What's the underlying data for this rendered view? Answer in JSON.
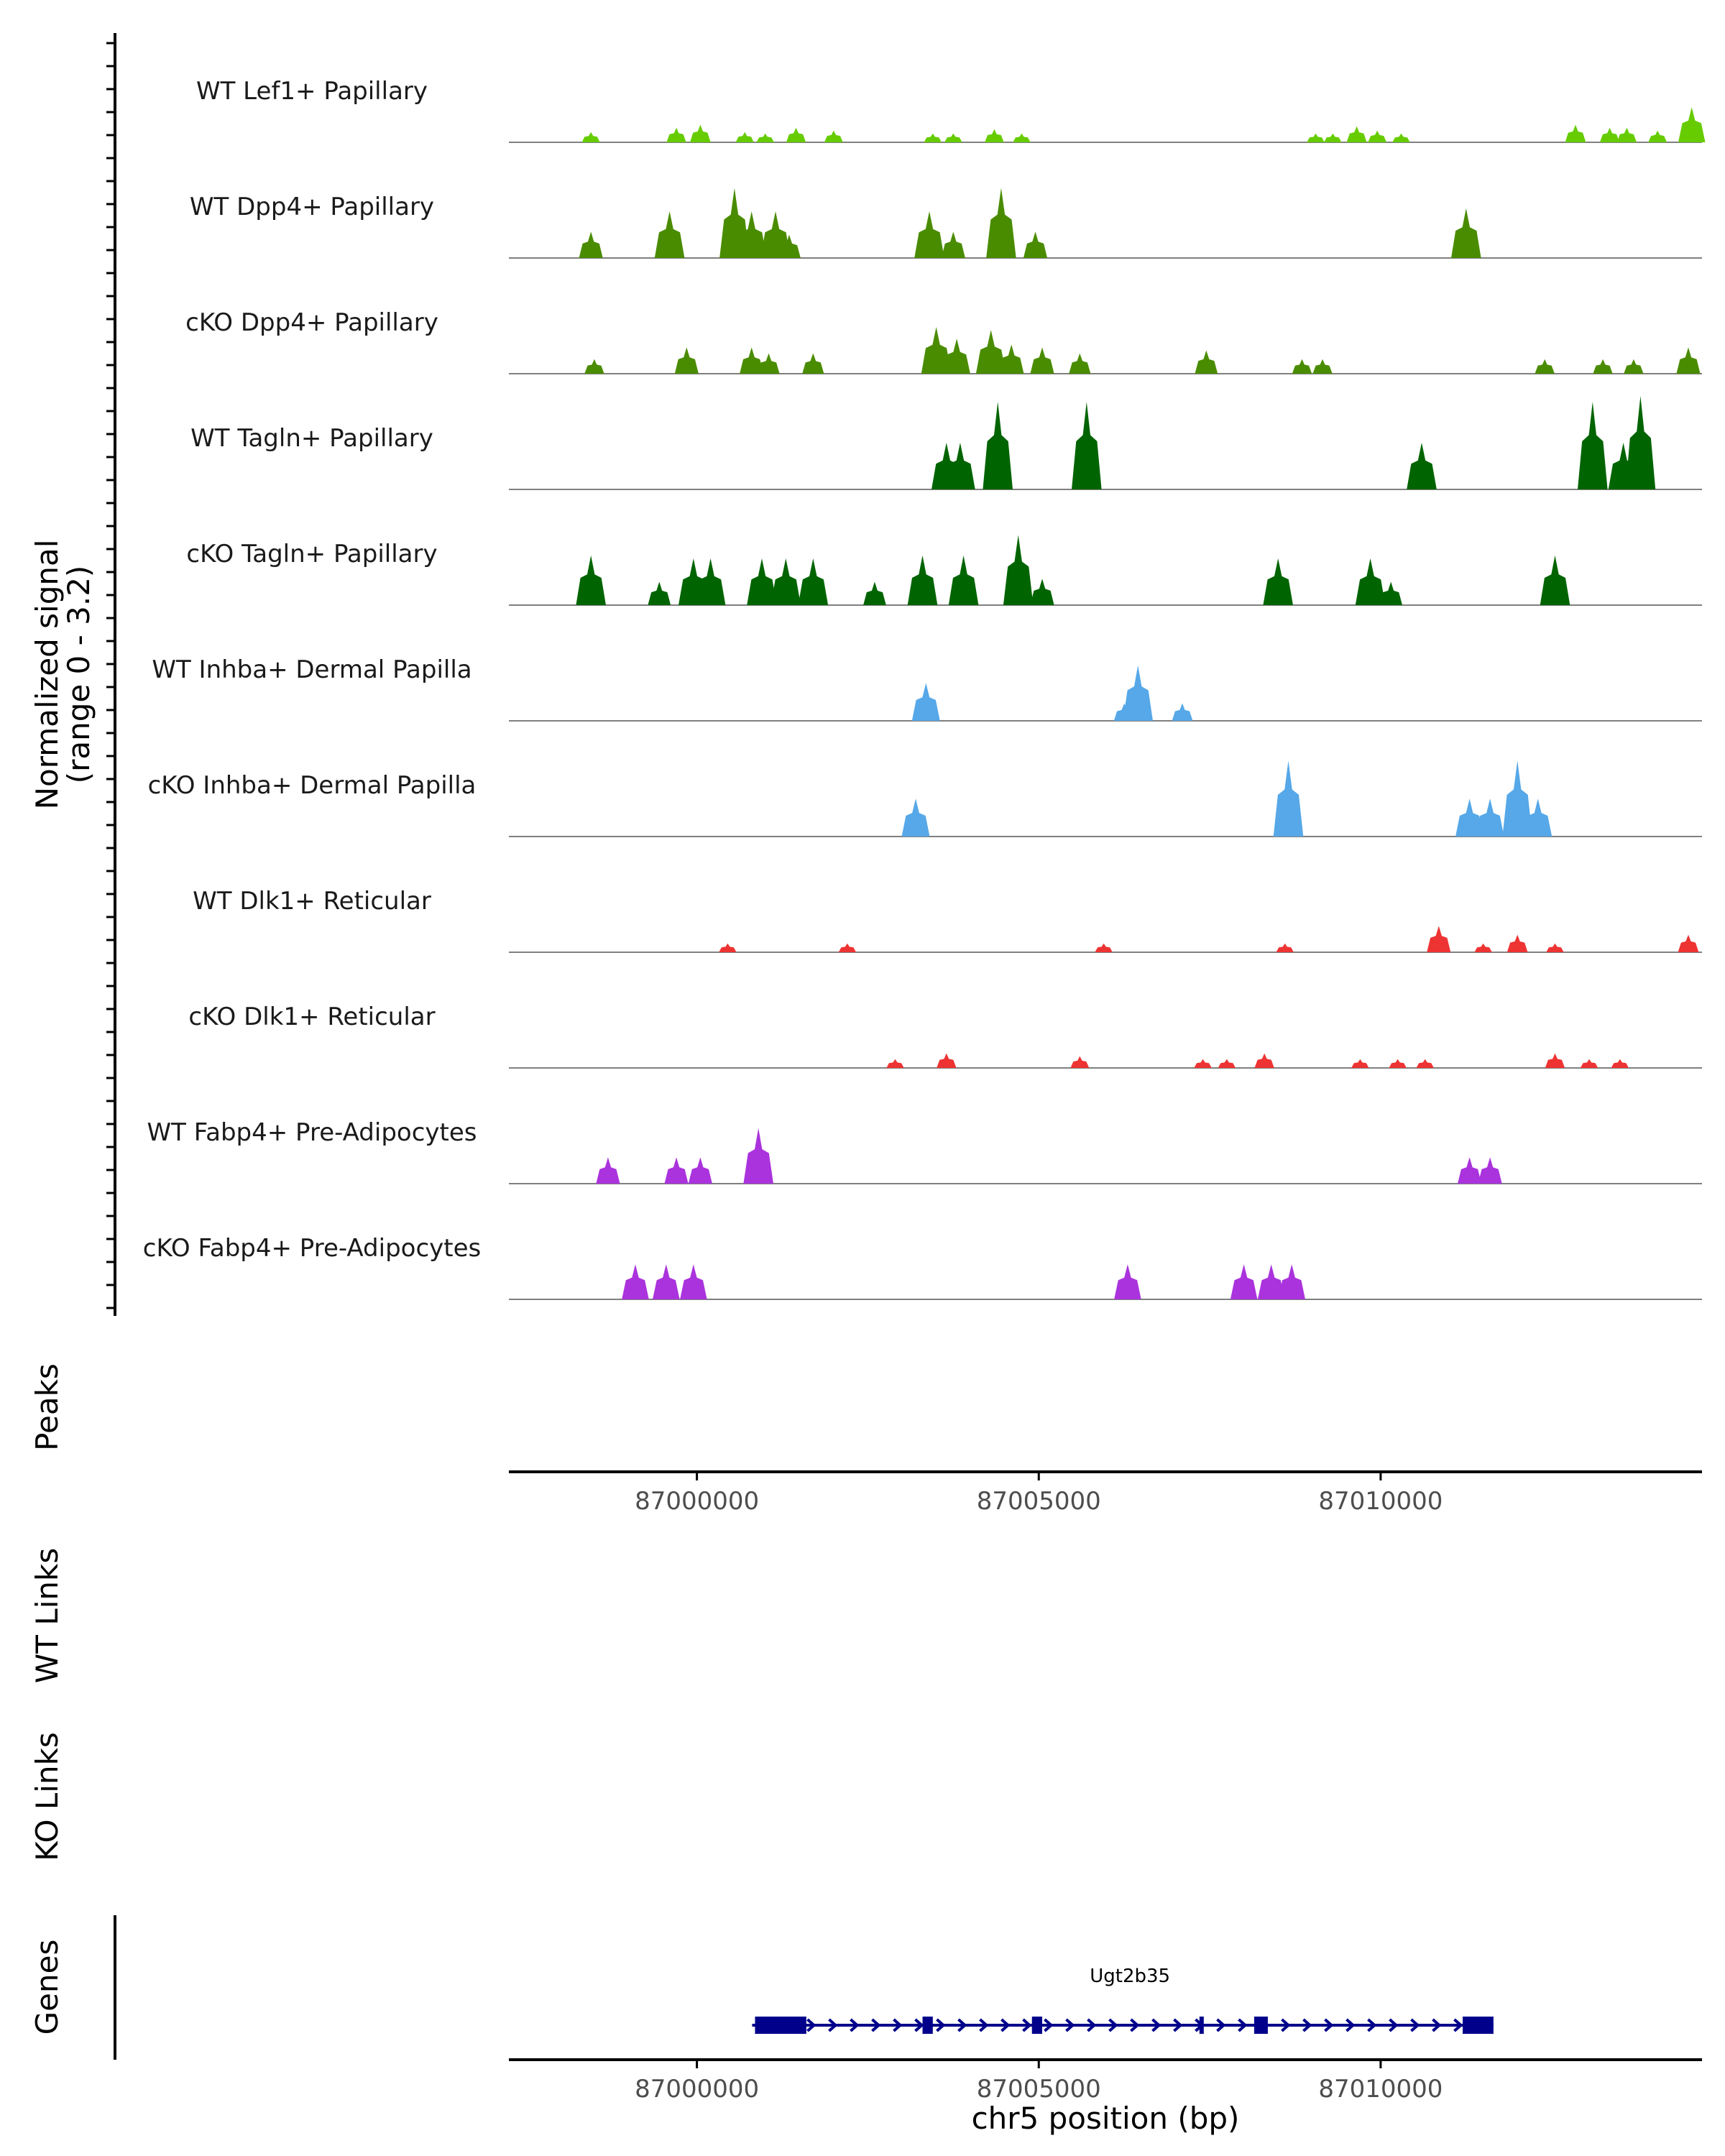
{
  "chart_data": {
    "type": "area",
    "description_free": true,
    "signal_panel": {
      "ylabel_line1": "Normalized signal",
      "ylabel_line2": "(range 0 - 3.2)",
      "ymax": 3.2,
      "xlim": [
        86997250,
        87014700
      ],
      "tracks": [
        {
          "name": "WT Lef1+ Papillary",
          "color": "#66cc00",
          "peaks": [
            [
              86998450,
              0.35
            ],
            [
              86999700,
              0.5
            ],
            [
              87000050,
              0.6
            ],
            [
              87000700,
              0.35
            ],
            [
              87001000,
              0.3
            ],
            [
              87001450,
              0.5
            ],
            [
              87002000,
              0.4
            ],
            [
              87003450,
              0.3
            ],
            [
              87003750,
              0.3
            ],
            [
              87004350,
              0.45
            ],
            [
              87004750,
              0.3
            ],
            [
              87009050,
              0.3
            ],
            [
              87009300,
              0.3
            ],
            [
              87009650,
              0.55
            ],
            [
              87009950,
              0.4
            ],
            [
              87010300,
              0.3
            ],
            [
              87012850,
              0.6
            ],
            [
              87013350,
              0.5
            ],
            [
              87013600,
              0.5
            ],
            [
              87014050,
              0.4
            ],
            [
              87014550,
              1.2
            ]
          ]
        },
        {
          "name": "WT Dpp4+ Papillary",
          "color": "#4a8c00",
          "peaks": [
            [
              86998450,
              0.9
            ],
            [
              86999600,
              1.6
            ],
            [
              87000550,
              2.4
            ],
            [
              87000800,
              1.6
            ],
            [
              87001150,
              1.6
            ],
            [
              87001350,
              0.8
            ],
            [
              87003400,
              1.6
            ],
            [
              87003750,
              0.9
            ],
            [
              87004450,
              2.4
            ],
            [
              87004950,
              0.9
            ],
            [
              87011250,
              1.7
            ]
          ]
        },
        {
          "name": "cKO Dpp4+ Papillary",
          "color": "#4a8c00",
          "peaks": [
            [
              86998500,
              0.5
            ],
            [
              86999850,
              0.9
            ],
            [
              87000800,
              0.9
            ],
            [
              87001050,
              0.7
            ],
            [
              87001700,
              0.7
            ],
            [
              87003500,
              1.6
            ],
            [
              87003800,
              1.2
            ],
            [
              87004300,
              1.5
            ],
            [
              87004600,
              1.0
            ],
            [
              87005050,
              0.9
            ],
            [
              87005600,
              0.7
            ],
            [
              87007450,
              0.8
            ],
            [
              87008850,
              0.5
            ],
            [
              87009150,
              0.5
            ],
            [
              87012400,
              0.5
            ],
            [
              87013250,
              0.5
            ],
            [
              87013700,
              0.5
            ],
            [
              87014500,
              0.9
            ]
          ]
        },
        {
          "name": "WT Tagln+ Papillary",
          "color": "#006400",
          "peaks": [
            [
              87003650,
              1.6
            ],
            [
              87003850,
              1.6
            ],
            [
              87004400,
              3.0
            ],
            [
              87005700,
              3.0
            ],
            [
              87010600,
              1.6
            ],
            [
              87013100,
              3.0
            ],
            [
              87013550,
              1.6
            ],
            [
              87013800,
              3.2
            ]
          ]
        },
        {
          "name": "cKO Tagln+ Papillary",
          "color": "#006400",
          "peaks": [
            [
              86998450,
              1.7
            ],
            [
              86999450,
              0.8
            ],
            [
              86999950,
              1.6
            ],
            [
              87000200,
              1.6
            ],
            [
              87000950,
              1.6
            ],
            [
              87001300,
              1.6
            ],
            [
              87001700,
              1.6
            ],
            [
              87002600,
              0.8
            ],
            [
              87003300,
              1.7
            ],
            [
              87003900,
              1.7
            ],
            [
              87004700,
              2.4
            ],
            [
              87005050,
              0.9
            ],
            [
              87008500,
              1.6
            ],
            [
              87009850,
              1.6
            ],
            [
              87010150,
              0.8
            ],
            [
              87012550,
              1.7
            ]
          ]
        },
        {
          "name": "WT Inhba+ Dermal Papilla",
          "color": "#56a8e8",
          "peaks": [
            [
              87003350,
              1.3
            ],
            [
              87006250,
              0.6
            ],
            [
              87006450,
              1.9
            ],
            [
              87007100,
              0.6
            ]
          ]
        },
        {
          "name": "cKO Inhba+ Dermal Papilla",
          "color": "#56a8e8",
          "peaks": [
            [
              87003200,
              1.3
            ],
            [
              87008650,
              2.6
            ],
            [
              87011300,
              1.3
            ],
            [
              87011600,
              1.3
            ],
            [
              87012000,
              2.6
            ],
            [
              87012300,
              1.3
            ]
          ]
        },
        {
          "name": "WT Dlk1+ Reticular",
          "color": "#ee3333",
          "peaks": [
            [
              87000450,
              0.3
            ],
            [
              87002200,
              0.3
            ],
            [
              87005950,
              0.3
            ],
            [
              87008600,
              0.3
            ],
            [
              87010850,
              0.9
            ],
            [
              87011500,
              0.3
            ],
            [
              87012000,
              0.6
            ],
            [
              87012550,
              0.3
            ],
            [
              87014500,
              0.6
            ]
          ]
        },
        {
          "name": "cKO Dlk1+ Reticular",
          "color": "#ee3333",
          "peaks": [
            [
              87002900,
              0.3
            ],
            [
              87003650,
              0.5
            ],
            [
              87005600,
              0.4
            ],
            [
              87007400,
              0.3
            ],
            [
              87007750,
              0.3
            ],
            [
              87008300,
              0.5
            ],
            [
              87009700,
              0.3
            ],
            [
              87010250,
              0.3
            ],
            [
              87010650,
              0.3
            ],
            [
              87012550,
              0.5
            ],
            [
              87013050,
              0.3
            ],
            [
              87013500,
              0.3
            ]
          ]
        },
        {
          "name": "WT Fabp4+ Pre-Adipocytes",
          "color": "#aa33dd",
          "peaks": [
            [
              86998700,
              0.9
            ],
            [
              86999700,
              0.9
            ],
            [
              87000050,
              0.9
            ],
            [
              87000900,
              1.9
            ],
            [
              87011300,
              0.9
            ],
            [
              87011600,
              0.9
            ]
          ]
        },
        {
          "name": "cKO Fabp4+ Pre-Adipocytes",
          "color": "#aa33dd",
          "peaks": [
            [
              86999100,
              1.2
            ],
            [
              86999550,
              1.2
            ],
            [
              86999950,
              1.2
            ],
            [
              87006300,
              1.2
            ],
            [
              87008000,
              1.2
            ],
            [
              87008400,
              1.2
            ],
            [
              87008700,
              1.2
            ]
          ]
        }
      ]
    },
    "peaks_panel": {
      "ylabel": "Peaks",
      "x_ticks": [
        87000000,
        87005000,
        87010000
      ],
      "x_tick_labels": [
        "87000000",
        "87005000",
        "87010000"
      ]
    },
    "wt_links_panel": {
      "ylabel": "WT Links"
    },
    "ko_links_panel": {
      "ylabel": "KO Links"
    },
    "genes_panel": {
      "ylabel": "Genes",
      "gene_name": "Ugt2b35",
      "gene_start": 87000850,
      "gene_end": 87011650,
      "strand": "+",
      "exons": [
        [
          87000850,
          87001600
        ],
        [
          87003300,
          87003450
        ],
        [
          87004900,
          87005050
        ],
        [
          87007350,
          87007400
        ],
        [
          87008150,
          87008350
        ],
        [
          87011200,
          87011650
        ]
      ],
      "x_ticks": [
        87000000,
        87005000,
        87010000
      ],
      "x_tick_labels": [
        "87000000",
        "87005000",
        "87010000"
      ],
      "xlabel": "chr5 position (bp)"
    },
    "colors": {
      "axis": "#000000",
      "baseline": "#808080",
      "gene": "#00008b",
      "text": "#1a1a1a"
    }
  }
}
